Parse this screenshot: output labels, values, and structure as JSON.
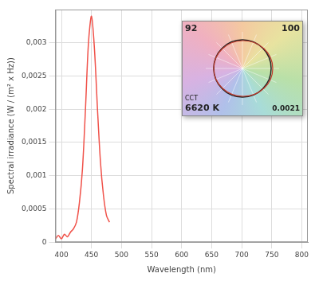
{
  "chart_data": {
    "type": "line",
    "x_label": "Wavelength (nm)",
    "y_label": "Spectral irradiance (W / (m² x Hz))",
    "x": [
      390,
      395,
      400,
      405,
      410,
      415,
      420,
      425,
      430,
      435,
      440,
      445,
      450,
      455,
      460,
      465,
      470,
      475,
      480
    ],
    "values": [
      5e-05,
      0.0001,
      5e-05,
      0.00012,
      8e-05,
      0.00015,
      0.0002,
      0.0003,
      0.0006,
      0.0011,
      0.002,
      0.003,
      0.0034,
      0.0029,
      0.002,
      0.0012,
      0.0007,
      0.0004,
      0.0003
    ],
    "color": "#f0524a",
    "xlim": [
      390,
      810
    ],
    "xticks": [
      400,
      450,
      500,
      550,
      600,
      650,
      700,
      750,
      800
    ],
    "ylim": [
      0,
      0.0035
    ],
    "yticks": [
      0,
      {
        "value": 0.0005,
        "label": "0,0005"
      },
      {
        "value": 0.001,
        "label": "0,001"
      },
      {
        "value": 0.0015,
        "label": "0,0015"
      },
      {
        "value": 0.002,
        "label": "0,002"
      },
      {
        "value": 0.0025,
        "label": "0,0025"
      },
      {
        "value": 0.003,
        "label": "0,003"
      }
    ],
    "grid": true,
    "annotations": [
      "92",
      "100",
      "CCT",
      "6620 K",
      "0.0021"
    ]
  }
}
